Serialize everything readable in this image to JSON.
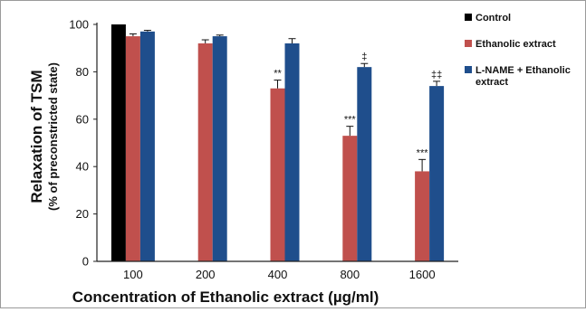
{
  "chart_data": {
    "type": "bar",
    "categories": [
      "100",
      "200",
      "400",
      "800",
      "1600"
    ],
    "xlabel": "Concentration of  Ethanolic extract (µg/ml)",
    "ylabel": "Relaxation of TSM",
    "ylabel_sub": "(% of preconstricted state)",
    "ylim": [
      0,
      100
    ],
    "yticks": [
      0,
      20,
      40,
      60,
      80,
      100
    ],
    "legend_position": "top-right",
    "series": [
      {
        "name": "Control",
        "color": "#000000",
        "values": [
          100,
          null,
          null,
          null,
          null
        ],
        "errors": [
          0,
          null,
          null,
          null,
          null
        ],
        "annotations": [
          "",
          "",
          "",
          "",
          ""
        ]
      },
      {
        "name": "Ethanolic extract",
        "color": "#c0504d",
        "values": [
          95,
          92,
          73,
          53,
          38
        ],
        "errors": [
          1,
          1.5,
          3.5,
          4,
          5
        ],
        "annotations": [
          "",
          "",
          "**",
          "***",
          "***"
        ]
      },
      {
        "name": "L-NAME + Ethanolic extract",
        "legend_lines": [
          "L-NAME + Ethanolic",
          "extract"
        ],
        "color": "#1f4e8c",
        "values": [
          97,
          95,
          92,
          82,
          74
        ],
        "errors": [
          0.5,
          0.5,
          2,
          1.5,
          2
        ],
        "annotations": [
          "",
          "",
          "",
          "‡",
          "‡‡"
        ]
      }
    ]
  }
}
